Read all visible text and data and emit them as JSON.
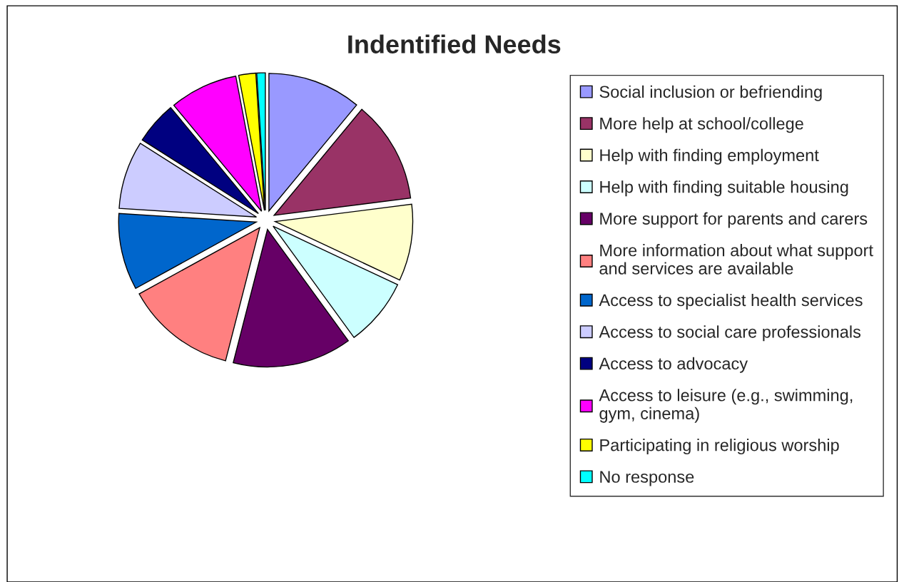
{
  "chart_data": {
    "type": "pie",
    "title": "Indentified Needs",
    "categories": [
      "Social inclusion or befriending",
      "More help at school/college",
      "Help with finding employment",
      "Help with finding suitable housing",
      "More support for parents and carers",
      "More information about what support\nand services are available",
      "Access to specialist health services",
      "Access to social care professionals",
      "Access to advocacy",
      "Access to leisure (e.g., swimming,\ngym, cinema)",
      "Participating in religious worship",
      "No response"
    ],
    "values": [
      11,
      12,
      9,
      8,
      14,
      13,
      9,
      8,
      5,
      8,
      2,
      1
    ],
    "colors": [
      "#9999ff",
      "#993366",
      "#ffffcc",
      "#ccffff",
      "#660066",
      "#ff8080",
      "#0066cc",
      "#ccccff",
      "#000080",
      "#ff00ff",
      "#ffff00",
      "#00ffff"
    ],
    "legend": "right"
  }
}
